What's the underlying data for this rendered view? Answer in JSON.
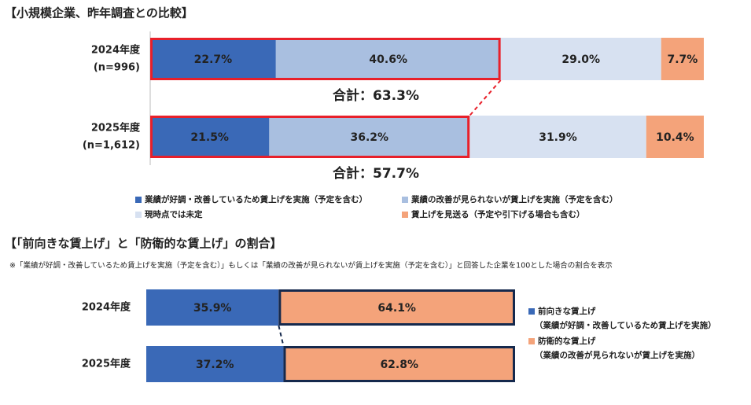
{
  "chart_data": [
    {
      "type": "bar",
      "orientation": "horizontal",
      "stacked": true,
      "title": "【小規模企業、昨年調査との比較】",
      "categories": [
        "2024年度",
        "2025年度"
      ],
      "category_notes": [
        "(n=996)",
        "(n=1,612)"
      ],
      "xlim": [
        0,
        100
      ],
      "legend_position": "bottom",
      "series": [
        {
          "name": "業績が好調・改善しているため賃上げを実施（予定を含む）",
          "color": "#3a69b7",
          "values": [
            22.7,
            21.5
          ],
          "value_labels": [
            "22.7%",
            "21.5%"
          ]
        },
        {
          "name": "業績の改善が見られないが賃上げを実施（予定を含む）",
          "color": "#a9bfe0",
          "values": [
            40.6,
            36.2
          ],
          "value_labels": [
            "40.6%",
            "36.2%"
          ]
        },
        {
          "name": "現時点では未定",
          "color": "#d7e1f1",
          "values": [
            29.0,
            31.9
          ],
          "value_labels": [
            "29.0%",
            "31.9%"
          ]
        },
        {
          "name": "賃上げを見送る（予定や引下げる場合も含む）",
          "color": "#f4a37a",
          "values": [
            7.7,
            10.4
          ],
          "value_labels": [
            "7.7%",
            "10.4%"
          ]
        }
      ],
      "annotations": [
        "合計：63.3%",
        "合計：57.7%"
      ],
      "highlight_color": "#e8202a"
    },
    {
      "type": "bar",
      "orientation": "horizontal",
      "stacked": true,
      "title": "【「前向きな賃上げ」と「防衛的な賃上げ」の割合】",
      "subtitle": "※「業績が好調・改善しているため賃上げを実施（予定を含む）」もしくは「業績の改善が見られないが賃上げを実施（予定を含む）」と回答した企業を100とした場合の割合を表示",
      "categories": [
        "2024年度",
        "2025年度"
      ],
      "xlim": [
        0,
        100
      ],
      "legend_position": "right",
      "series": [
        {
          "name": "前向きな賃上げ",
          "description": "（業績が好調・改善しているため賃上げを実施）",
          "color": "#3a69b7",
          "values": [
            35.9,
            37.2
          ],
          "value_labels": [
            "35.9%",
            "37.2%"
          ]
        },
        {
          "name": "防衛的な賃上げ",
          "description": "（業績の改善が見られないが賃上げを実施）",
          "color": "#f4a37a",
          "values": [
            64.1,
            62.8
          ],
          "value_labels": [
            "64.1%",
            "62.8%"
          ]
        }
      ],
      "highlight_color": "#15294d"
    }
  ]
}
